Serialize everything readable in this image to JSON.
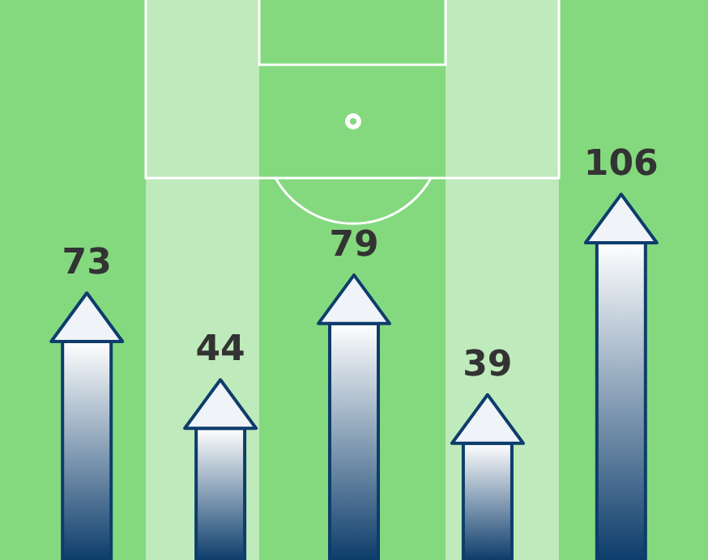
{
  "chart_data": {
    "type": "bar",
    "categories": [
      null,
      null,
      null,
      null,
      null
    ],
    "values": [
      73,
      44,
      79,
      39,
      106
    ],
    "color": "#0d3d6b",
    "data_labels": true
  }
}
